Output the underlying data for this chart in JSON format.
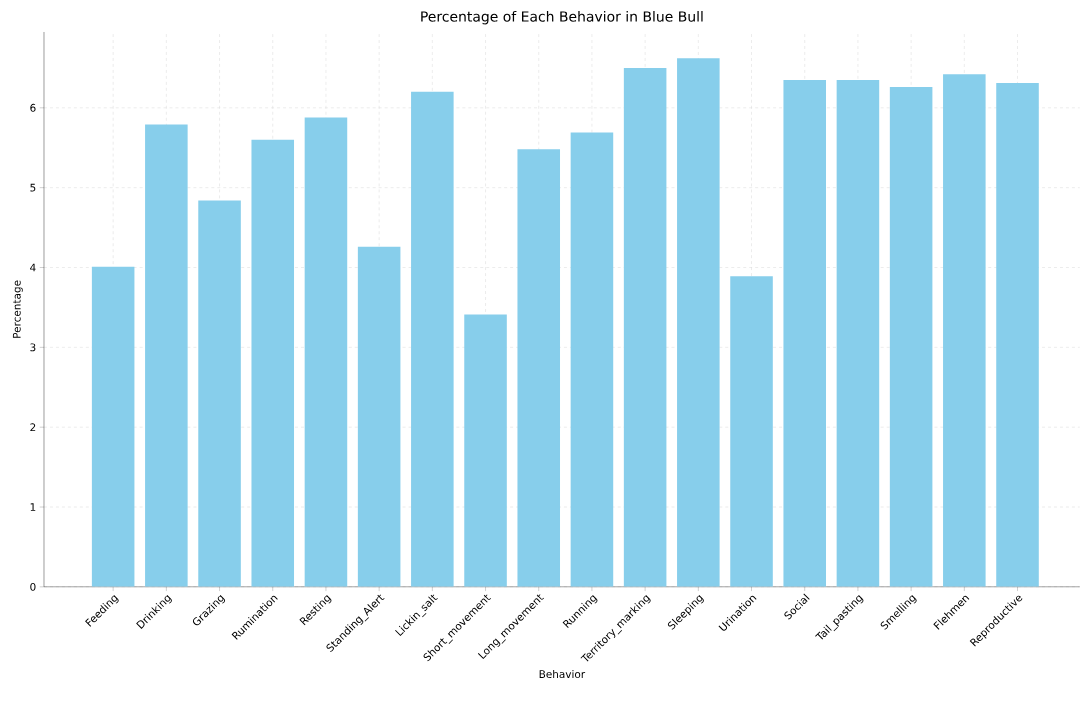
{
  "chart_data": {
    "type": "bar",
    "title": "Percentage of Each Behavior in Blue Bull",
    "xlabel": "Behavior",
    "ylabel": "Percentage",
    "categories": [
      "Feeding",
      "Drinking",
      "Grazing",
      "Rumination",
      "Resting",
      "Standing_Alert",
      "Lickin_salt",
      "Short_movement",
      "Long_movement",
      "Running",
      "Territory_marking",
      "Sleeping",
      "Urination",
      "Social",
      "Tail_pasting",
      "Smelling",
      "Flehmen",
      "Reproductive"
    ],
    "values": [
      4.01,
      5.79,
      4.84,
      5.6,
      5.88,
      4.26,
      6.2,
      3.41,
      5.48,
      5.69,
      6.5,
      6.62,
      3.89,
      6.35,
      6.35,
      6.26,
      6.42,
      6.31
    ],
    "color": "#87ceeb",
    "ylim": [
      0,
      6.95
    ],
    "yticks": [
      0,
      1,
      2,
      3,
      4,
      5,
      6
    ],
    "grid": true
  }
}
